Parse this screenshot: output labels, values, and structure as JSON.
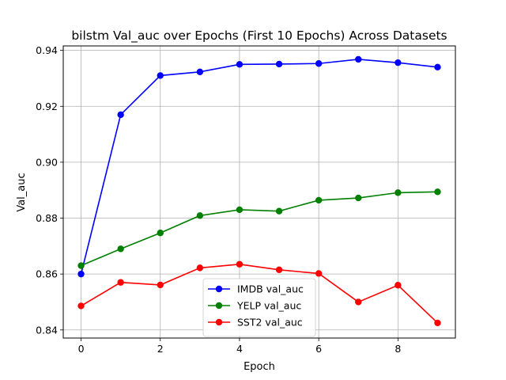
{
  "chart_data": {
    "type": "line",
    "title": "bilstm Val_auc over Epochs (First 10 Epochs) Across Datasets",
    "xlabel": "Epoch",
    "ylabel": "Val_auc",
    "x": [
      0,
      1,
      2,
      3,
      4,
      5,
      6,
      7,
      8,
      9
    ],
    "xlim": [
      -0.45,
      9.45
    ],
    "ylim": [
      0.8371,
      0.9416
    ],
    "xticks": [
      0,
      2,
      4,
      6,
      8
    ],
    "yticks": [
      0.84,
      0.86,
      0.88,
      0.9,
      0.92,
      0.94
    ],
    "ytick_labels": [
      "0.84",
      "0.86",
      "0.88",
      "0.90",
      "0.92",
      "0.94"
    ],
    "grid": true,
    "legend_position": "lower-center",
    "series": [
      {
        "name": "IMDB val_auc",
        "color": "#0000ff",
        "values": [
          0.86,
          0.917,
          0.931,
          0.9323,
          0.935,
          0.9351,
          0.9353,
          0.9368,
          0.9356,
          0.934
        ]
      },
      {
        "name": "YELP val_auc",
        "color": "#008000",
        "values": [
          0.863,
          0.869,
          0.8747,
          0.8809,
          0.883,
          0.8825,
          0.8864,
          0.8872,
          0.8891,
          0.8894
        ]
      },
      {
        "name": "SST2 val_auc",
        "color": "#ff0000",
        "values": [
          0.8486,
          0.857,
          0.8561,
          0.8622,
          0.8635,
          0.8615,
          0.8602,
          0.85,
          0.856,
          0.8425
        ]
      }
    ]
  }
}
